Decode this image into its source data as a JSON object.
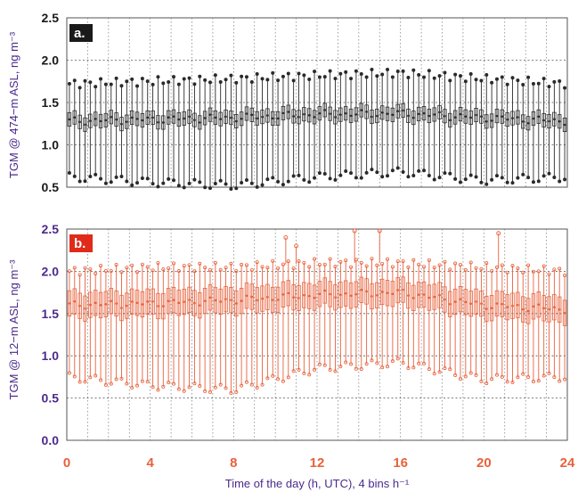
{
  "chart_data": [
    {
      "type": "box",
      "panel_label": "a.",
      "ylabel": "TGM @ 474−m ASL, ng m⁻³",
      "ylim": [
        0.5,
        2.5
      ],
      "yticks": [
        "0.5",
        "1.0",
        "1.5",
        "2.0",
        "2.5"
      ],
      "color": "#2a2a2a",
      "label_bg": "#1a1a1a",
      "bins_per_hour": 4,
      "median_anchors": {
        "hours": [
          0,
          4,
          8,
          12,
          16,
          20,
          24
        ],
        "values": [
          1.28,
          1.3,
          1.32,
          1.36,
          1.37,
          1.32,
          1.28
        ]
      },
      "upper_whisker_anchors": {
        "hours": [
          0,
          4,
          8,
          12,
          16,
          20,
          24
        ],
        "values": [
          1.72,
          1.75,
          1.78,
          1.82,
          1.85,
          1.78,
          1.72
        ]
      },
      "lower_whisker_anchors": {
        "hours": [
          0,
          4,
          8,
          12,
          16,
          20,
          24
        ],
        "values": [
          0.62,
          0.56,
          0.52,
          0.62,
          0.68,
          0.58,
          0.62
        ]
      },
      "box_half_height": 0.08
    },
    {
      "type": "box",
      "panel_label": "b.",
      "ylabel": "TGM @ 12−m ASL, ng m⁻³",
      "ylim": [
        0.0,
        2.5
      ],
      "yticks": [
        "0.0",
        "0.5",
        "1.0",
        "1.5",
        "2.0",
        "2.5"
      ],
      "color": "#e8613c",
      "label_bg": "#e02b1a",
      "bins_per_hour": 4,
      "median_anchors": {
        "hours": [
          0,
          4,
          8,
          12,
          16,
          20,
          24
        ],
        "values": [
          1.6,
          1.62,
          1.66,
          1.72,
          1.75,
          1.6,
          1.55
        ]
      },
      "upper_whisker_anchors": {
        "hours": [
          0,
          4,
          8,
          12,
          16,
          20,
          24
        ],
        "values": [
          2.0,
          2.05,
          2.05,
          2.1,
          2.1,
          2.05,
          2.0
        ]
      },
      "lower_whisker_anchors": {
        "hours": [
          0,
          4,
          8,
          12,
          16,
          20,
          24
        ],
        "values": [
          0.75,
          0.65,
          0.6,
          0.85,
          0.92,
          0.72,
          0.75
        ]
      },
      "box_half_height": 0.15,
      "outliers": [
        [
          10.5,
          2.4
        ],
        [
          11.0,
          2.3
        ],
        [
          13.8,
          2.72
        ],
        [
          15.0,
          2.78
        ],
        [
          20.7,
          2.45
        ]
      ]
    }
  ],
  "x_axis": {
    "label": "Time of the day (h, UTC), 4 bins h⁻¹",
    "ticks": [
      "0",
      "4",
      "8",
      "12",
      "16",
      "20",
      "24"
    ],
    "xlim": [
      0,
      24
    ]
  }
}
